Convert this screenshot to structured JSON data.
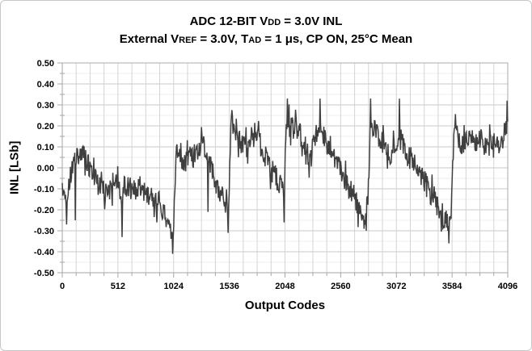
{
  "window": {
    "background": "#ffffff",
    "border_color": "#c6c6c6"
  },
  "chart_data": {
    "type": "line",
    "title_segments": [
      {
        "t": "ADC 12-BIT V"
      },
      {
        "t": "DD",
        "small": true
      },
      {
        "t": " = 3.0V INL"
      }
    ],
    "subtitle_segments": [
      {
        "t": "External V"
      },
      {
        "t": "REF",
        "small": true
      },
      {
        "t": " = 3.0V, T"
      },
      {
        "t": "AD",
        "small": true
      },
      {
        "t": " = 1 μs, CP ON, 25°C Mean"
      }
    ],
    "xlabel": "Output Codes",
    "ylabel": "INL [LSb]",
    "xlim": [
      0,
      4096
    ],
    "ylim": [
      -0.5,
      0.5
    ],
    "x_ticks": [
      [
        0,
        "0"
      ],
      [
        512,
        "512"
      ],
      [
        1024,
        "1024"
      ],
      [
        1536,
        "1536"
      ],
      [
        2048,
        "2048"
      ],
      [
        2560,
        "2560"
      ],
      [
        3072,
        "3072"
      ],
      [
        3584,
        "3584"
      ],
      [
        4096,
        "4096"
      ]
    ],
    "x_minor_step": 128,
    "y_ticks": [
      [
        0.5,
        "0.50"
      ],
      [
        0.4,
        "0.40"
      ],
      [
        0.3,
        "0.30"
      ],
      [
        0.2,
        "0.20"
      ],
      [
        0.1,
        "0.10"
      ],
      [
        0.0,
        "0.00"
      ],
      [
        -0.1,
        "-0.10"
      ],
      [
        -0.2,
        "-0.20"
      ],
      [
        -0.3,
        "-0.30"
      ],
      [
        -0.4,
        "-0.40"
      ],
      [
        -0.5,
        "-0.50"
      ]
    ],
    "y_minor_step": 0.05,
    "grid": {
      "h_major_color": "#c8c8c8",
      "h_minor_color": "#ececec",
      "v_minor_color": "#d4d4d4",
      "axis_color": "#a6a6a6",
      "border_color": "#ababab"
    },
    "series": {
      "name": "INL",
      "color": "#3f3f3f",
      "stroke_width": 1.5,
      "x_step": 5,
      "noise": {
        "amplitude": 0.055,
        "spike_chance": 0.14,
        "spike_scale": 1.9,
        "seed": 1337
      },
      "trend_points": [
        [
          0,
          -0.1
        ],
        [
          25,
          -0.14
        ],
        [
          45,
          -0.17
        ],
        [
          70,
          -0.06
        ],
        [
          100,
          0.02
        ],
        [
          140,
          0.05
        ],
        [
          190,
          0.05
        ],
        [
          240,
          0.02
        ],
        [
          280,
          -0.02
        ],
        [
          330,
          -0.08
        ],
        [
          380,
          -0.11
        ],
        [
          430,
          -0.13
        ],
        [
          465,
          -0.07
        ],
        [
          500,
          -0.05
        ],
        [
          535,
          -0.14
        ],
        [
          565,
          -0.09
        ],
        [
          605,
          -0.08
        ],
        [
          645,
          -0.12
        ],
        [
          685,
          -0.09
        ],
        [
          725,
          -0.13
        ],
        [
          765,
          -0.11
        ],
        [
          805,
          -0.14
        ],
        [
          845,
          -0.17
        ],
        [
          885,
          -0.15
        ],
        [
          925,
          -0.2
        ],
        [
          965,
          -0.24
        ],
        [
          995,
          -0.28
        ],
        [
          1018,
          -0.33
        ],
        [
          1030,
          -0.18
        ],
        [
          1045,
          0.06
        ],
        [
          1080,
          0.08
        ],
        [
          1120,
          0.02
        ],
        [
          1160,
          0.07
        ],
        [
          1200,
          0.04
        ],
        [
          1250,
          0.08
        ],
        [
          1295,
          0.12
        ],
        [
          1340,
          0.06
        ],
        [
          1380,
          -0.02
        ],
        [
          1420,
          -0.08
        ],
        [
          1460,
          -0.13
        ],
        [
          1495,
          -0.17
        ],
        [
          1522,
          -0.23
        ],
        [
          1536,
          -0.08
        ],
        [
          1550,
          0.2
        ],
        [
          1568,
          0.24
        ],
        [
          1600,
          0.17
        ],
        [
          1645,
          0.12
        ],
        [
          1690,
          0.09
        ],
        [
          1740,
          0.14
        ],
        [
          1785,
          0.17
        ],
        [
          1825,
          0.11
        ],
        [
          1865,
          0.06
        ],
        [
          1905,
          0.01
        ],
        [
          1950,
          -0.03
        ],
        [
          2000,
          -0.08
        ],
        [
          2038,
          -0.13
        ],
        [
          2050,
          0.03
        ],
        [
          2064,
          0.22
        ],
        [
          2100,
          0.19
        ],
        [
          2145,
          0.21
        ],
        [
          2195,
          0.15
        ],
        [
          2240,
          0.09
        ],
        [
          2285,
          0.04
        ],
        [
          2325,
          0.16
        ],
        [
          2365,
          0.21
        ],
        [
          2415,
          0.15
        ],
        [
          2465,
          0.1
        ],
        [
          2515,
          0.04
        ],
        [
          2565,
          -0.02
        ],
        [
          2620,
          -0.08
        ],
        [
          2675,
          -0.13
        ],
        [
          2730,
          -0.19
        ],
        [
          2790,
          -0.24
        ],
        [
          2815,
          -0.14
        ],
        [
          2832,
          0.21
        ],
        [
          2865,
          0.18
        ],
        [
          2915,
          0.14
        ],
        [
          2965,
          0.1
        ],
        [
          3015,
          0.05
        ],
        [
          3065,
          0.09
        ],
        [
          3115,
          0.13
        ],
        [
          3165,
          0.08
        ],
        [
          3215,
          0.04
        ],
        [
          3265,
          0.0
        ],
        [
          3315,
          -0.05
        ],
        [
          3365,
          -0.1
        ],
        [
          3415,
          -0.15
        ],
        [
          3465,
          -0.19
        ],
        [
          3515,
          -0.24
        ],
        [
          3552,
          -0.28
        ],
        [
          3580,
          -0.13
        ],
        [
          3598,
          0.18
        ],
        [
          3645,
          0.14
        ],
        [
          3695,
          0.1
        ],
        [
          3745,
          0.14
        ],
        [
          3795,
          0.11
        ],
        [
          3845,
          0.15
        ],
        [
          3895,
          0.09
        ],
        [
          3945,
          0.12
        ],
        [
          3995,
          0.09
        ],
        [
          4045,
          0.13
        ],
        [
          4075,
          0.18
        ],
        [
          4096,
          0.24
        ]
      ],
      "extreme_points": [
        [
          40,
          -0.27
        ],
        [
          118,
          -0.25
        ],
        [
          548,
          -0.33
        ],
        [
          868,
          -0.26
        ],
        [
          1016,
          -0.41
        ],
        [
          1338,
          -0.21
        ],
        [
          1526,
          -0.31
        ],
        [
          2042,
          -0.26
        ],
        [
          2068,
          0.33
        ],
        [
          2368,
          0.33
        ],
        [
          2796,
          -0.3
        ],
        [
          2836,
          0.33
        ],
        [
          3098,
          0.33
        ],
        [
          3556,
          -0.36
        ],
        [
          4090,
          0.32
        ]
      ]
    }
  }
}
